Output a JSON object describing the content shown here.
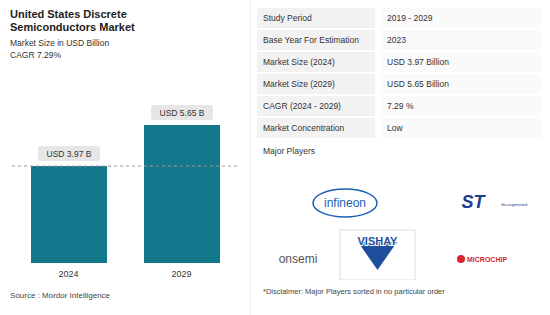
{
  "chart_data": {
    "type": "bar",
    "title": "United States Discrete Semiconductors Market",
    "subtitle": "Market Size in USD Billion",
    "cagr_label": "CAGR 7.29%",
    "categories": [
      "2024",
      "2029"
    ],
    "values": [
      3.97,
      5.65
    ],
    "value_labels": [
      "USD 3.97 B",
      "USD 5.65 B"
    ],
    "data_labels": true,
    "color": "#13788c",
    "tick_labels": "x",
    "grid": false,
    "source": "Source : Mordor Intelligence"
  },
  "table": {
    "rows": [
      [
        "Study Period",
        "2019 - 2029"
      ],
      [
        "Base Year For Estimation",
        "2023"
      ],
      [
        "Market Size (2024)",
        "USD 3.97 Billion"
      ],
      [
        "Market Size (2029)",
        "USD 5.65 Billion"
      ],
      [
        "CAGR (2024 - 2029)",
        "7.29 %"
      ],
      [
        "Market Concentration",
        "Low"
      ]
    ]
  },
  "major_players": {
    "title": "Major Players",
    "logos": [
      "infineon",
      "ST",
      "life.augmented",
      "onsemi",
      "VISHAY",
      "MICROCHIP"
    ],
    "disclaimer": "*Disclaimer: Major Players sorted in no particular order"
  }
}
